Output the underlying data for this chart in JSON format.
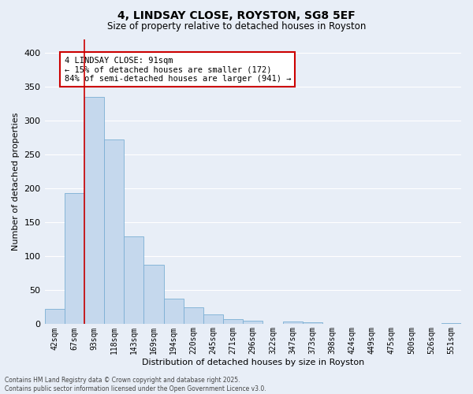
{
  "title1": "4, LINDSAY CLOSE, ROYSTON, SG8 5EF",
  "title2": "Size of property relative to detached houses in Royston",
  "xlabel": "Distribution of detached houses by size in Royston",
  "ylabel": "Number of detached properties",
  "categories": [
    "42sqm",
    "67sqm",
    "93sqm",
    "118sqm",
    "143sqm",
    "169sqm",
    "194sqm",
    "220sqm",
    "245sqm",
    "271sqm",
    "296sqm",
    "322sqm",
    "347sqm",
    "373sqm",
    "398sqm",
    "424sqm",
    "449sqm",
    "475sqm",
    "500sqm",
    "526sqm",
    "551sqm"
  ],
  "values": [
    22,
    193,
    335,
    272,
    130,
    88,
    38,
    25,
    14,
    8,
    5,
    0,
    4,
    3,
    0,
    0,
    0,
    0,
    0,
    0,
    2
  ],
  "bar_color": "#c5d8ed",
  "bar_edge_color": "#7bafd4",
  "vline_x": 1.5,
  "vline_color": "#cc0000",
  "annotation_text": "4 LINDSAY CLOSE: 91sqm\n← 15% of detached houses are smaller (172)\n84% of semi-detached houses are larger (941) →",
  "annotation_box_color": "#ffffff",
  "annotation_box_edge": "#cc0000",
  "bg_color": "#e8eef7",
  "grid_color": "#ffffff",
  "footer": "Contains HM Land Registry data © Crown copyright and database right 2025.\nContains public sector information licensed under the Open Government Licence v3.0.",
  "ylim": [
    0,
    420
  ],
  "yticks": [
    0,
    50,
    100,
    150,
    200,
    250,
    300,
    350,
    400
  ]
}
